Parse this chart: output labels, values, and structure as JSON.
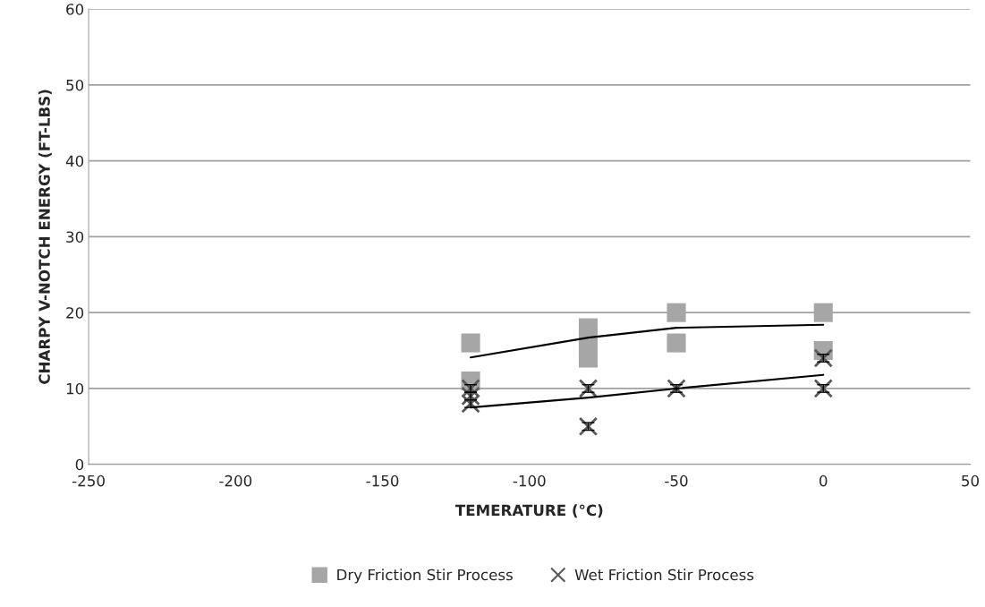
{
  "chart_data": {
    "type": "scatter",
    "xlabel": "TEMERATURE (°C)",
    "ylabel": "CHARPY V-NOTCH ENERGY (FT-LBS)",
    "xlim": [
      -250,
      50
    ],
    "xticks": [
      -250,
      -200,
      -150,
      -100,
      -50,
      0,
      50
    ],
    "ylim": [
      0,
      60
    ],
    "yticks": [
      0,
      10,
      20,
      30,
      40,
      50,
      60
    ],
    "grid": "y",
    "legend": "bottom",
    "series": [
      {
        "name": "Dry Friction Stir Process",
        "color": "#a6a6a6",
        "marker": "square",
        "x": [
          -120,
          -120,
          -80,
          -80,
          -80,
          -50,
          -50,
          0,
          0
        ],
        "values": [
          16,
          11,
          18,
          16,
          14,
          20,
          16,
          20,
          15
        ]
      },
      {
        "name": "Wet Friction Stir Process",
        "color": "#595959",
        "marker": "cross",
        "x": [
          -120,
          -120,
          -120,
          -80,
          -80,
          -50,
          0,
          0
        ],
        "values": [
          10,
          9,
          8,
          10,
          5,
          10,
          14,
          10
        ],
        "errors": [
          0.5,
          0.5,
          0.5,
          0.5,
          0.5,
          0.5,
          0.5,
          0.5
        ]
      },
      {
        "type": "line",
        "color": "#000000",
        "marker": "none",
        "x": [
          -120,
          -80,
          -50,
          0
        ],
        "values": [
          14.1,
          16.7,
          18.0,
          18.4
        ]
      },
      {
        "type": "line",
        "color": "#000000",
        "marker": "none",
        "x": [
          -120,
          -80,
          -50,
          0
        ],
        "values": [
          7.5,
          8.8,
          10.0,
          11.8
        ]
      }
    ]
  }
}
